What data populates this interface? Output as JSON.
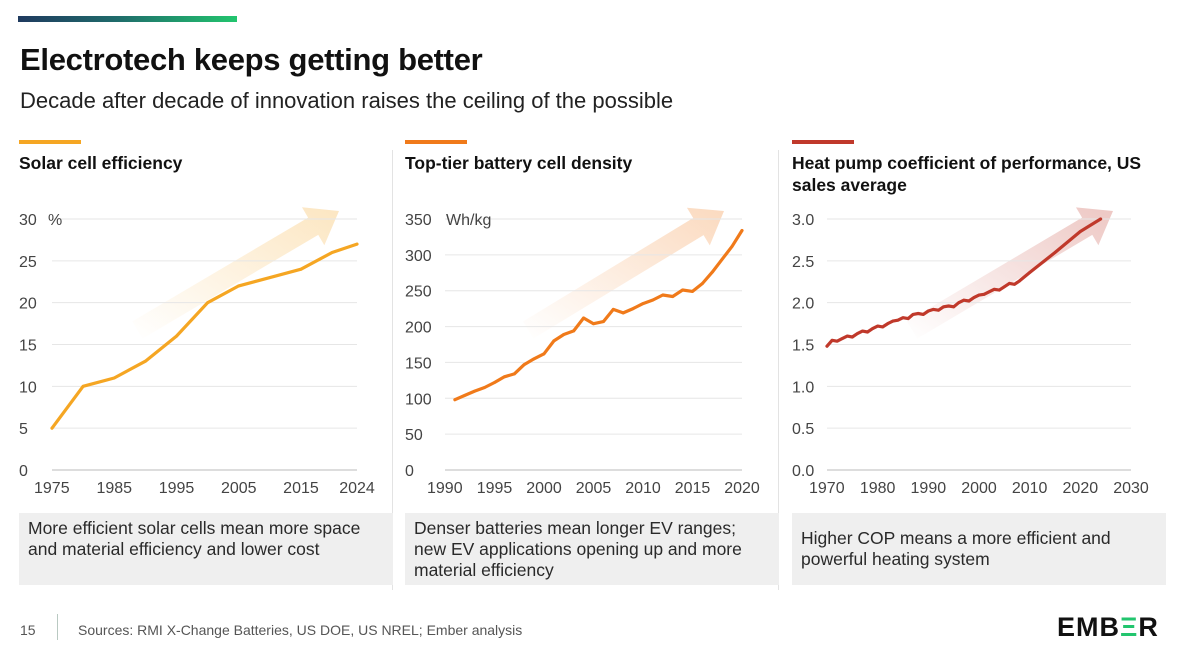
{
  "header": {
    "title": "Electrotech keeps getting better",
    "subtitle": "Decade after decade of innovation raises the ceiling of the possible"
  },
  "footer": {
    "page_number": "15",
    "sources": "Sources: RMI X-Change Batteries, US DOE, US NREL; Ember analysis",
    "logo": "EMBER"
  },
  "chart_data": [
    {
      "type": "line",
      "title": "Solar cell efficiency",
      "ylabel": "%",
      "color": "#f5a623",
      "xlim": [
        1975,
        2024
      ],
      "ylim": [
        0,
        30
      ],
      "x_ticks": [
        1975,
        1985,
        1995,
        2005,
        2015,
        2024
      ],
      "y_ticks": [
        0,
        5,
        10,
        15,
        20,
        25,
        30
      ],
      "y_tick_labels": [
        "0",
        "5",
        "10",
        "15",
        "20",
        "25",
        "30"
      ],
      "x": [
        1975,
        1980,
        1985,
        1990,
        1995,
        2000,
        2005,
        2010,
        2015,
        2020,
        2024
      ],
      "y": [
        5,
        10,
        11,
        13,
        16,
        20,
        22,
        23,
        24,
        26,
        27
      ],
      "caption": "More efficient solar cells mean more space and material efficiency and lower cost"
    },
    {
      "type": "line",
      "title": "Top-tier battery cell density",
      "ylabel": "Wh/kg",
      "color": "#f07a1a",
      "xlim": [
        1990,
        2020
      ],
      "ylim": [
        0,
        350
      ],
      "x_ticks": [
        1990,
        1995,
        2000,
        2005,
        2010,
        2015,
        2020
      ],
      "y_ticks": [
        0,
        50,
        100,
        150,
        200,
        250,
        300,
        350
      ],
      "y_tick_labels": [
        "0",
        "50",
        "100",
        "150",
        "200",
        "250",
        "300",
        "350"
      ],
      "x": [
        1991,
        1992,
        1993,
        1994,
        1995,
        1996,
        1997,
        1998,
        1999,
        2000,
        2001,
        2002,
        2003,
        2004,
        2005,
        2006,
        2007,
        2008,
        2009,
        2010,
        2011,
        2012,
        2013,
        2014,
        2015,
        2016,
        2017,
        2018,
        2019,
        2020
      ],
      "y": [
        98,
        104,
        110,
        115,
        122,
        130,
        134,
        147,
        155,
        162,
        180,
        189,
        194,
        212,
        204,
        207,
        224,
        219,
        225,
        232,
        237,
        244,
        242,
        251,
        249,
        260,
        276,
        294,
        312,
        334
      ],
      "caption": "Denser batteries mean longer EV ranges; new EV applications opening up and more material efficiency"
    },
    {
      "type": "line",
      "title": "Heat pump coefficient of performance, US sales average",
      "ylabel": "",
      "color": "#c0392b",
      "xlim": [
        1970,
        2030
      ],
      "ylim": [
        0,
        3
      ],
      "x_ticks": [
        1970,
        1980,
        1990,
        2000,
        2010,
        2020,
        2030
      ],
      "y_ticks": [
        0,
        0.5,
        1,
        1.5,
        2,
        2.5,
        3
      ],
      "y_tick_labels": [
        "0.0",
        "0.5",
        "1.0",
        "1.5",
        "2.0",
        "2.5",
        "3.0"
      ],
      "x": [
        1970,
        1971,
        1972,
        1973,
        1974,
        1975,
        1976,
        1977,
        1978,
        1979,
        1980,
        1981,
        1982,
        1983,
        1984,
        1985,
        1986,
        1987,
        1988,
        1989,
        1990,
        1991,
        1992,
        1993,
        1994,
        1995,
        1996,
        1997,
        1998,
        1999,
        2000,
        2001,
        2002,
        2003,
        2004,
        2005,
        2006,
        2007,
        2008,
        2010,
        2015,
        2020,
        2024
      ],
      "y": [
        1.48,
        1.55,
        1.54,
        1.57,
        1.6,
        1.59,
        1.63,
        1.66,
        1.65,
        1.69,
        1.72,
        1.71,
        1.75,
        1.78,
        1.79,
        1.82,
        1.81,
        1.86,
        1.87,
        1.86,
        1.9,
        1.92,
        1.91,
        1.95,
        1.96,
        1.95,
        2.0,
        2.03,
        2.02,
        2.06,
        2.09,
        2.1,
        2.13,
        2.16,
        2.15,
        2.19,
        2.23,
        2.22,
        2.26,
        2.36,
        2.6,
        2.85,
        3.0
      ],
      "caption": "Higher COP means a more efficient and powerful heating system"
    }
  ]
}
